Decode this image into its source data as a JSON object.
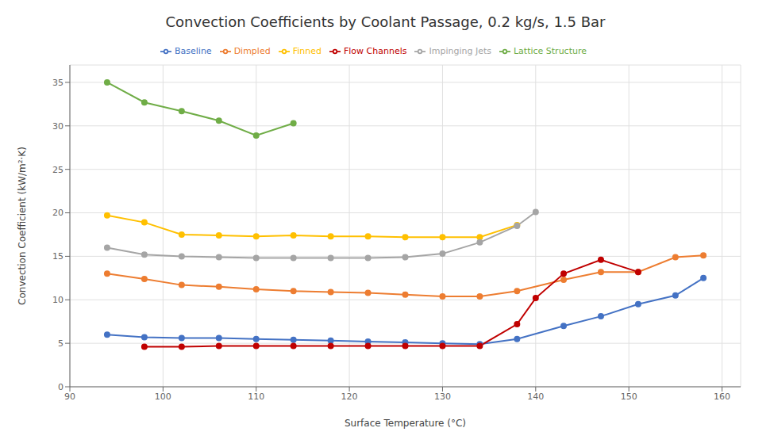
{
  "chart_data": {
    "type": "line",
    "title": "Convection Coefficients by Coolant Passage, 0.2 kg/s, 1.5 Bar",
    "xlabel": "Surface Temperature (°C)",
    "ylabel": "Convection Coefficient (kW/m²·K)",
    "xlim": [
      90,
      162
    ],
    "ylim": [
      0,
      37
    ],
    "xticks": [
      90,
      100,
      110,
      120,
      130,
      140,
      150,
      160
    ],
    "yticks": [
      0,
      5,
      10,
      15,
      20,
      25,
      30,
      35
    ],
    "grid": true,
    "legend": "top",
    "series": [
      {
        "name": "Baseline",
        "color": "#4472C4",
        "marker": "circle",
        "x": [
          94,
          98,
          102,
          106,
          110,
          114,
          118,
          122,
          126,
          130,
          134,
          138,
          143,
          147,
          151,
          155,
          158
        ],
        "values": [
          6.0,
          5.7,
          5.6,
          5.6,
          5.5,
          5.4,
          5.3,
          5.2,
          5.1,
          5.0,
          4.9,
          5.5,
          7.0,
          8.1,
          9.5,
          10.5,
          12.5
        ]
      },
      {
        "name": "Dimpled",
        "color": "#ED7D31",
        "marker": "circle",
        "x": [
          94,
          98,
          102,
          106,
          110,
          114,
          118,
          122,
          126,
          130,
          134,
          138,
          143,
          147,
          151,
          155,
          158
        ],
        "values": [
          13.0,
          12.4,
          11.7,
          11.5,
          11.2,
          11.0,
          10.9,
          10.8,
          10.6,
          10.4,
          10.4,
          11.0,
          12.3,
          13.2,
          13.2,
          14.9,
          15.1
        ]
      },
      {
        "name": "Finned",
        "color": "#FFC000",
        "marker": "circle",
        "x": [
          94,
          98,
          102,
          106,
          110,
          114,
          118,
          122,
          126,
          130,
          134,
          138
        ],
        "values": [
          19.7,
          18.9,
          17.5,
          17.4,
          17.3,
          17.4,
          17.3,
          17.3,
          17.2,
          17.2,
          17.2,
          18.6
        ]
      },
      {
        "name": "Impinging Jets",
        "color": "#A5A5A5",
        "marker": "circle",
        "x": [
          94,
          98,
          102,
          106,
          110,
          114,
          118,
          122,
          126,
          130,
          134,
          138,
          140
        ],
        "values": [
          16.0,
          15.2,
          15.0,
          14.9,
          14.8,
          14.8,
          14.8,
          14.8,
          14.9,
          15.3,
          16.6,
          18.5,
          20.1
        ]
      },
      {
        "name": "Flow Channels",
        "color": "#C00000",
        "marker": "circle",
        "x": [
          98,
          102,
          106,
          110,
          114,
          118,
          122,
          126,
          130,
          134,
          138,
          140,
          143,
          147,
          151
        ],
        "values": [
          4.6,
          4.6,
          4.7,
          4.7,
          4.7,
          4.7,
          4.7,
          4.7,
          4.7,
          4.7,
          7.2,
          10.2,
          13.0,
          14.6,
          13.2
        ]
      },
      {
        "name": "Lattice Structure",
        "color": "#70AD47",
        "marker": "circle",
        "x": [
          94,
          98,
          102,
          106,
          110,
          114
        ],
        "values": [
          35.0,
          32.7,
          31.7,
          30.6,
          28.9,
          30.3
        ]
      }
    ]
  }
}
